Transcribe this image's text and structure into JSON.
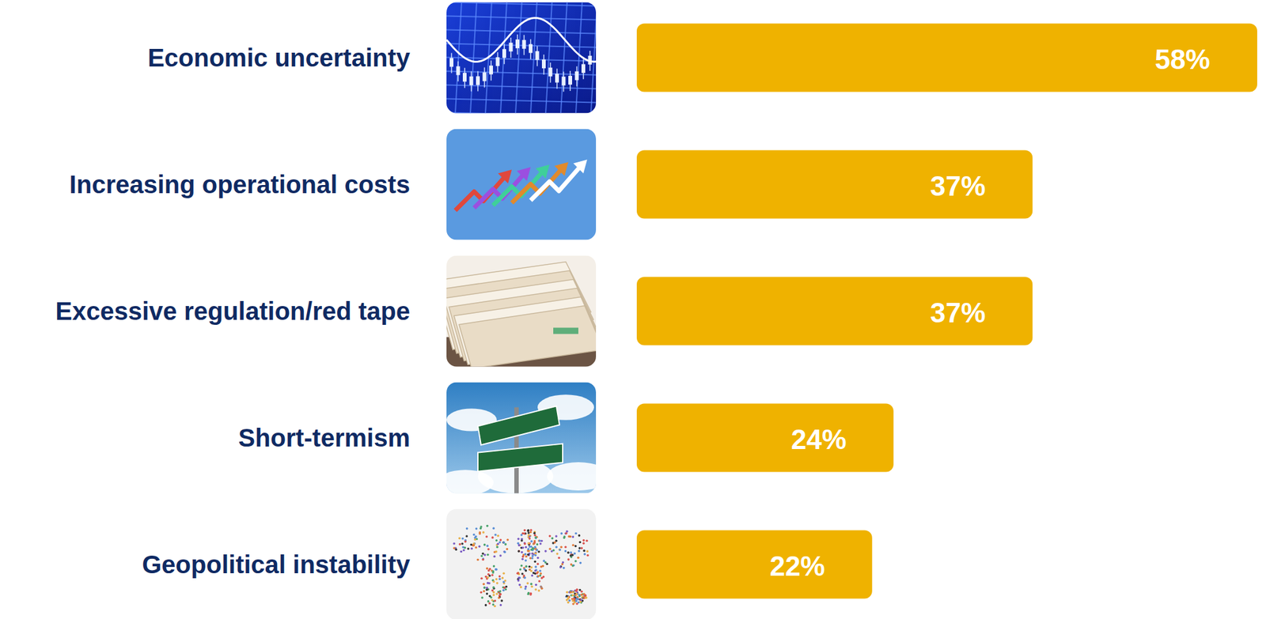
{
  "chart_data": {
    "type": "bar",
    "orientation": "horizontal",
    "categories": [
      "Economic uncertainty",
      "Increasing operational costs",
      "Excessive regulation/red tape",
      "Short-termism",
      "Geopolitical instability"
    ],
    "values": [
      58,
      37,
      37,
      24,
      22
    ],
    "value_labels": [
      "58%",
      "37%",
      "37%",
      "24%",
      "22%"
    ],
    "color": "#efb200",
    "data_labels": true
  }
}
